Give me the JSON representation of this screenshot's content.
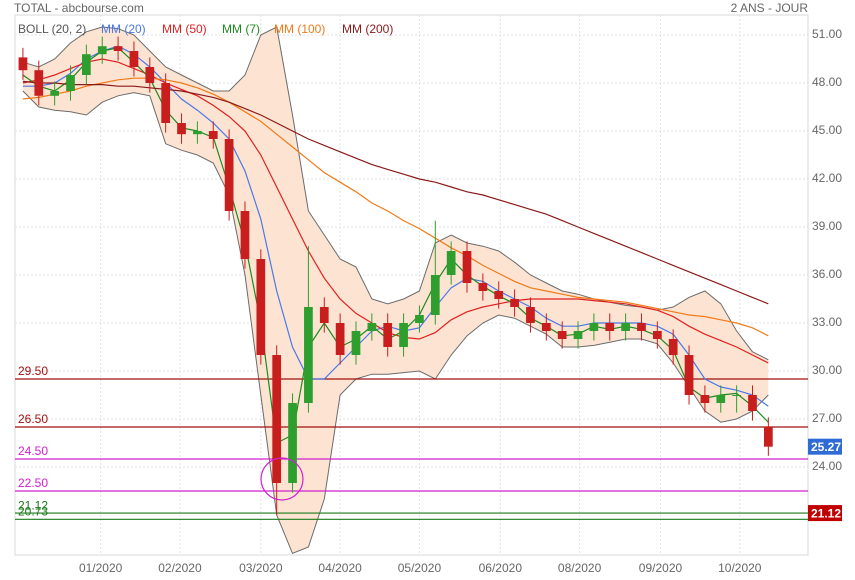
{
  "chart_data": {
    "type": "candlestick",
    "title": "TOTAL - abcbourse.com",
    "period": "2 ANS - JOUR",
    "up_color": "#2e9e2e",
    "down_color": "#c81e1e",
    "open": [
      49.6,
      48.8,
      47.2,
      47.5,
      48.5,
      49.8,
      50.3,
      50.0,
      49.0,
      48.0,
      45.5,
      44.8,
      45.0,
      44.5,
      40.0,
      37.0,
      31.0,
      23.0,
      28.0,
      34.0,
      33.0,
      31.0,
      32.5,
      33.0,
      31.5,
      33.0,
      33.5,
      36.0,
      37.5,
      35.5,
      35.0,
      34.5,
      34.0,
      33.0,
      32.5,
      32.0,
      32.5,
      33.0,
      32.5,
      33.0,
      32.5,
      32.0,
      31.0,
      28.5,
      28.0,
      28.5,
      28.5,
      26.5
    ],
    "high": [
      50.2,
      49.4,
      48.1,
      49.1,
      50.4,
      50.9,
      50.9,
      50.6,
      49.6,
      48.6,
      46.1,
      45.6,
      45.6,
      45.1,
      40.6,
      37.6,
      31.6,
      28.6,
      37.8,
      34.6,
      33.6,
      33.1,
      33.6,
      33.6,
      33.6,
      34.1,
      39.4,
      38.1,
      38.1,
      36.1,
      35.6,
      35.1,
      34.6,
      33.6,
      33.1,
      33.1,
      33.6,
      33.6,
      33.6,
      33.6,
      33.1,
      32.6,
      31.6,
      29.1,
      29.1,
      29.1,
      29.1,
      27.1
    ],
    "low": [
      48.2,
      46.6,
      46.6,
      46.9,
      47.9,
      49.2,
      49.4,
      48.4,
      47.4,
      44.9,
      44.2,
      44.2,
      43.9,
      39.4,
      36.4,
      30.4,
      21.0,
      22.4,
      27.4,
      32.4,
      30.4,
      30.4,
      31.9,
      30.9,
      30.9,
      32.4,
      32.9,
      35.4,
      34.9,
      34.4,
      33.9,
      33.4,
      32.4,
      31.9,
      31.4,
      31.4,
      31.9,
      31.9,
      31.9,
      31.9,
      31.4,
      30.4,
      27.9,
      27.4,
      27.4,
      27.4,
      26.9,
      24.7
    ],
    "close": [
      48.8,
      47.2,
      47.5,
      48.5,
      49.8,
      50.3,
      50.0,
      49.0,
      48.0,
      45.5,
      44.8,
      45.0,
      44.5,
      40.0,
      37.0,
      31.0,
      23.0,
      28.0,
      34.0,
      33.0,
      31.0,
      32.5,
      33.0,
      31.5,
      33.0,
      33.5,
      36.0,
      37.5,
      35.5,
      35.0,
      34.5,
      34.0,
      33.0,
      32.5,
      32.0,
      32.5,
      33.0,
      32.5,
      33.0,
      32.5,
      32.0,
      31.0,
      28.5,
      28.0,
      28.5,
      28.5,
      27.5,
      25.27
    ],
    "bollinger": {
      "name": "BOLL (20, 2)",
      "color": "#6b6b6b",
      "fill": "#fde4d2",
      "upper": [
        49.3,
        49.0,
        49.5,
        50.5,
        51.2,
        51.5,
        51.4,
        51.0,
        50.0,
        49.0,
        48.5,
        48.0,
        47.5,
        47.5,
        48.5,
        51.0,
        51.5,
        46.0,
        40.0,
        38.5,
        37.0,
        36.5,
        34.5,
        34.2,
        34.5,
        35.0,
        38.0,
        38.5,
        38.0,
        37.8,
        37.5,
        36.8,
        36.0,
        35.5,
        35.0,
        34.8,
        34.5,
        34.3,
        34.1,
        34.0,
        33.8,
        34.0,
        34.6,
        35.0,
        34.2,
        32.5,
        31.2,
        30.7
      ],
      "lower": [
        47.5,
        46.5,
        46.3,
        46.2,
        46.0,
        46.8,
        47.2,
        47.4,
        47.2,
        44.2,
        43.8,
        43.5,
        43.0,
        41.0,
        36.0,
        28.5,
        21.0,
        18.6,
        19.0,
        22.0,
        28.5,
        29.5,
        29.8,
        29.8,
        29.9,
        30.0,
        29.5,
        31.0,
        32.2,
        33.0,
        33.5,
        33.3,
        32.8,
        32.3,
        31.5,
        31.5,
        31.6,
        31.8,
        32.0,
        32.0,
        31.7,
        30.5,
        29.0,
        27.5,
        26.8,
        27.0,
        27.5,
        28.5
      ]
    },
    "series": [
      {
        "name": "MM (20)",
        "color": "#4a78e8",
        "values": [
          47.8,
          47.8,
          48.0,
          48.6,
          49.5,
          50.0,
          50.3,
          49.8,
          49.0,
          48.0,
          47.0,
          46.3,
          45.5,
          44.5,
          42.5,
          39.5,
          35.0,
          31.5,
          29.5,
          29.5,
          30.5,
          31.5,
          32.5,
          32.8,
          32.5,
          32.7,
          34.0,
          35.2,
          35.8,
          35.6,
          35.0,
          34.5,
          34.0,
          33.3,
          32.8,
          32.8,
          33.0,
          33.0,
          33.0,
          33.0,
          32.8,
          32.3,
          31.0,
          29.5,
          29.0,
          28.8,
          28.5,
          27.8
        ]
      },
      {
        "name": "MM (50)",
        "color": "#e02020",
        "values": [
          48.0,
          48.2,
          48.5,
          48.9,
          49.3,
          49.5,
          49.3,
          48.9,
          48.5,
          48.0,
          47.6,
          47.2,
          46.6,
          45.9,
          45.0,
          43.5,
          41.5,
          39.5,
          37.5,
          35.8,
          34.5,
          33.6,
          33.0,
          32.4,
          32.1,
          32.0,
          32.4,
          33.2,
          33.7,
          34.0,
          34.2,
          34.4,
          34.5,
          34.5,
          34.5,
          34.5,
          34.4,
          34.3,
          34.2,
          34.0,
          33.8,
          33.4,
          32.8,
          32.3,
          31.9,
          31.5,
          31.0,
          30.5
        ]
      },
      {
        "name": "MM (7)",
        "color": "#1e8a1e",
        "values": [
          48.5,
          47.8,
          47.5,
          48.2,
          49.3,
          50.0,
          50.2,
          49.3,
          48.3,
          46.3,
          45.2,
          45.0,
          44.6,
          41.5,
          38.0,
          33.0,
          25.5,
          26.0,
          31.5,
          33.0,
          31.5,
          32.0,
          32.8,
          32.0,
          32.5,
          33.5,
          35.5,
          37.0,
          36.0,
          35.3,
          34.7,
          34.2,
          33.3,
          32.8,
          32.2,
          32.3,
          32.8,
          32.6,
          32.8,
          32.6,
          32.2,
          31.3,
          29.0,
          28.3,
          28.5,
          28.6,
          27.8,
          26.8
        ]
      },
      {
        "name": "MM (100)",
        "color": "#f07a18",
        "values": [
          47.0,
          47.1,
          47.3,
          47.5,
          47.8,
          48.0,
          48.2,
          48.3,
          48.3,
          48.2,
          48.0,
          47.7,
          47.3,
          46.8,
          46.2,
          45.6,
          44.8,
          44.0,
          43.2,
          42.4,
          41.8,
          41.2,
          40.5,
          40.0,
          39.4,
          38.9,
          38.3,
          37.7,
          37.2,
          36.6,
          36.1,
          35.6,
          35.2,
          35.0,
          34.8,
          34.6,
          34.5,
          34.4,
          34.3,
          34.1,
          33.9,
          33.7,
          33.5,
          33.4,
          33.2,
          33.0,
          32.7,
          32.2
        ]
      },
      {
        "name": "MM (200)",
        "color": "#8b1a1a",
        "values": [
          48.1,
          48.0,
          48.0,
          47.9,
          47.9,
          47.9,
          47.8,
          47.8,
          47.7,
          47.6,
          47.5,
          47.3,
          47.1,
          46.8,
          46.4,
          46.0,
          45.5,
          45.0,
          44.5,
          44.1,
          43.7,
          43.3,
          42.9,
          42.6,
          42.3,
          42.0,
          41.8,
          41.5,
          41.2,
          41.0,
          40.7,
          40.4,
          40.1,
          39.8,
          39.4,
          39.0,
          38.6,
          38.2,
          37.8,
          37.4,
          37.0,
          36.6,
          36.2,
          35.8,
          35.4,
          35.0,
          34.6,
          34.2
        ]
      }
    ],
    "levels": [
      {
        "value": 29.5,
        "label": "29.50",
        "color": "#a01010"
      },
      {
        "value": 26.5,
        "label": "26.50",
        "color": "#a01010"
      },
      {
        "value": 24.5,
        "label": "24.50",
        "color": "#d020d0"
      },
      {
        "value": 22.5,
        "label": "22.50",
        "color": "#d020d0"
      },
      {
        "value": 21.12,
        "color": "#1a7a1a"
      },
      {
        "value": 20.73,
        "color": "#1a7a1a"
      }
    ],
    "badges": [
      {
        "value": 25.27,
        "color": "#2e6bd6"
      },
      {
        "value": 21.12,
        "color": "#c00000"
      }
    ],
    "xlim": [
      -0.5,
      49.5
    ],
    "xticks": [
      {
        "value": 4.9,
        "label": "01/2020"
      },
      {
        "value": 9.9,
        "label": "02/2020"
      },
      {
        "value": 15.0,
        "label": "03/2020"
      },
      {
        "value": 20.0,
        "label": "04/2020"
      },
      {
        "value": 25.0,
        "label": "05/2020"
      },
      {
        "value": 30.1,
        "label": "06/2020"
      },
      {
        "value": 35.1,
        "label": "08/2020"
      },
      {
        "value": 40.2,
        "label": "09/2020"
      },
      {
        "value": 45.2,
        "label": "10/2020"
      }
    ],
    "ylim": [
      18.5,
      52.25
    ],
    "yticks": [
      {
        "value": 51,
        "label": "51.00"
      },
      {
        "value": 48,
        "label": "48.00"
      },
      {
        "value": 45,
        "label": "45.00"
      },
      {
        "value": 42,
        "label": "42.00"
      },
      {
        "value": 39,
        "label": "39.00"
      },
      {
        "value": 36,
        "label": "36.00"
      },
      {
        "value": 33,
        "label": "33.00"
      },
      {
        "value": 30,
        "label": "30.00"
      },
      {
        "value": 27,
        "label": "27.00"
      },
      {
        "value": 24,
        "label": "24.00"
      }
    ],
    "grid": true
  }
}
